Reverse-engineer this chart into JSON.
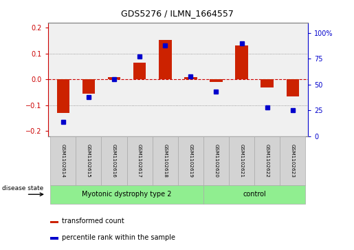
{
  "title": "GDS5276 / ILMN_1664557",
  "samples": [
    "GSM1102614",
    "GSM1102615",
    "GSM1102616",
    "GSM1102617",
    "GSM1102618",
    "GSM1102619",
    "GSM1102620",
    "GSM1102621",
    "GSM1102622",
    "GSM1102623"
  ],
  "red_values": [
    -0.13,
    -0.055,
    0.008,
    0.065,
    0.152,
    0.008,
    -0.01,
    0.132,
    -0.03,
    -0.065
  ],
  "blue_values": [
    14,
    38,
    55,
    77,
    88,
    58,
    43,
    90,
    28,
    25
  ],
  "groups": [
    {
      "label": "Myotonic dystrophy type 2",
      "start": 0,
      "end": 5,
      "color": "#90EE90"
    },
    {
      "label": "control",
      "start": 6,
      "end": 9,
      "color": "#90EE90"
    }
  ],
  "ylim_left": [
    -0.22,
    0.22
  ],
  "ylim_right": [
    0,
    110
  ],
  "yticks_left": [
    -0.2,
    -0.1,
    0.0,
    0.1,
    0.2
  ],
  "yticks_right": [
    0,
    25,
    50,
    75,
    100
  ],
  "left_tick_color": "#cc0000",
  "right_tick_color": "#0000cc",
  "hline_color": "#cc0000",
  "dot_color": "#0000cc",
  "bar_color": "#cc2200",
  "bg_color": "#f0f0f0",
  "label_bg": "#d3d3d3",
  "disease_state_label": "disease state",
  "legend_red": "transformed count",
  "legend_blue": "percentile rank within the sample",
  "bar_width": 0.5
}
